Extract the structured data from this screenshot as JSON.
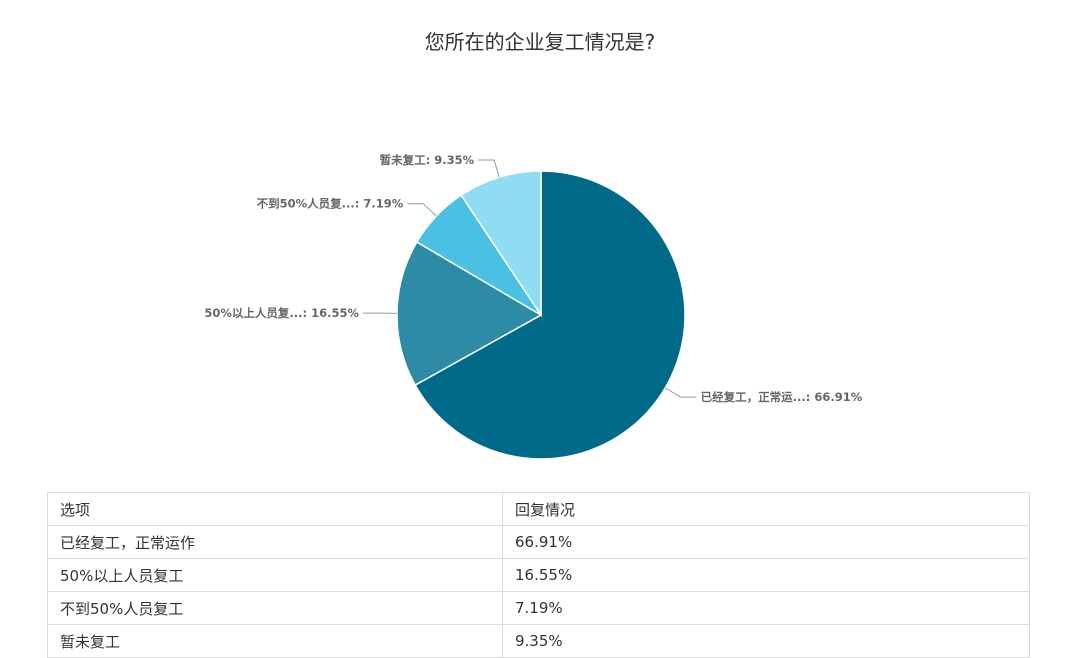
{
  "chart_data": {
    "type": "pie",
    "title": "您所在的企业复工情况是?",
    "slices": [
      {
        "label": "已经复工，正常运...",
        "value": 66.91,
        "display": "66.91%",
        "color": "#016a88"
      },
      {
        "label": "50%以上人员复...",
        "value": 16.55,
        "display": "16.55%",
        "color": "#2d8ba6"
      },
      {
        "label": "不到50%人员复...",
        "value": 7.19,
        "display": "7.19%",
        "color": "#4ac1e2"
      },
      {
        "label": "暂未复工",
        "value": 9.35,
        "display": "9.35%",
        "color": "#8fddf5"
      }
    ]
  },
  "table": {
    "headers": [
      "选项",
      "回复情况"
    ],
    "rows": [
      [
        "已经复工，正常运作",
        "66.91%"
      ],
      [
        "50%以上人员复工",
        "16.55%"
      ],
      [
        "不到50%人员复工",
        "7.19%"
      ],
      [
        "暂未复工",
        "9.35%"
      ]
    ]
  }
}
